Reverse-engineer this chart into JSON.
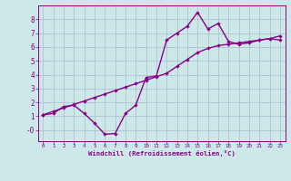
{
  "xlabel": "Windchill (Refroidissement éolien,°C)",
  "background_color": "#cce8e8",
  "line_color": "#880088",
  "grid_color": "#aabbcc",
  "curve1_x": [
    0,
    1,
    2,
    3,
    4,
    5,
    6,
    7,
    8,
    9,
    10,
    11,
    12,
    13,
    14,
    15,
    16,
    17,
    18,
    19,
    20,
    21,
    22,
    23
  ],
  "curve1_y": [
    1.1,
    1.2,
    1.7,
    1.8,
    1.2,
    0.5,
    -0.3,
    -0.25,
    1.2,
    1.8,
    3.8,
    3.9,
    6.5,
    7.0,
    7.5,
    8.5,
    7.3,
    7.7,
    6.4,
    6.2,
    6.3,
    6.5,
    6.6,
    6.5
  ],
  "curve2_x": [
    0,
    1,
    2,
    3,
    4,
    5,
    6,
    7,
    8,
    9,
    10,
    11,
    12,
    13,
    14,
    15,
    16,
    17,
    18,
    19,
    20,
    21,
    22,
    23
  ],
  "curve2_y": [
    1.1,
    1.35,
    1.6,
    1.85,
    2.1,
    2.35,
    2.6,
    2.85,
    3.1,
    3.35,
    3.6,
    3.85,
    4.1,
    4.6,
    5.1,
    5.6,
    5.9,
    6.1,
    6.2,
    6.3,
    6.4,
    6.5,
    6.6,
    6.8
  ],
  "xlim": [
    -0.5,
    23.5
  ],
  "ylim": [
    -0.8,
    9.0
  ],
  "xticks": [
    0,
    1,
    2,
    3,
    4,
    5,
    6,
    7,
    8,
    9,
    10,
    11,
    12,
    13,
    14,
    15,
    16,
    17,
    18,
    19,
    20,
    21,
    22,
    23
  ],
  "yticks": [
    0,
    1,
    2,
    3,
    4,
    5,
    6,
    7,
    8
  ],
  "ytick_labels": [
    "-0",
    "1",
    "2",
    "3",
    "4",
    "5",
    "6",
    "7",
    "8"
  ],
  "marker": "D",
  "marker_size": 2.2,
  "line_width": 1.0
}
